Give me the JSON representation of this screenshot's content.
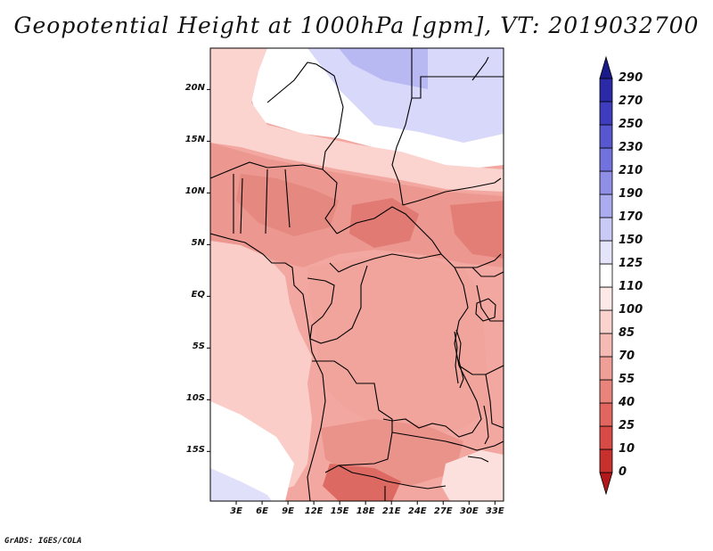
{
  "title": "Geopotential Height at 1000hPa [gpm], VT: 2019032700",
  "credit": "GrADS: IGES/COLA",
  "chart_data": {
    "type": "heatmap",
    "title": "Geopotential Height at 1000hPa [gpm], VT: 2019032700",
    "variable": "Geopotential Height",
    "level": "1000hPa",
    "units": "gpm",
    "valid_time": "2019032700",
    "lon_range": [
      0,
      34
    ],
    "lat_range": [
      -19.8,
      24
    ],
    "y_ticks": [
      "20N",
      "15N",
      "10N",
      "5N",
      "EQ",
      "5S",
      "10S",
      "15S"
    ],
    "y_tick_values": [
      20,
      15,
      10,
      5,
      0,
      -5,
      -10,
      -15
    ],
    "x_ticks": [
      "3E",
      "6E",
      "9E",
      "12E",
      "15E",
      "18E",
      "21E",
      "24E",
      "27E",
      "30E",
      "33E"
    ],
    "x_tick_values": [
      3,
      6,
      9,
      12,
      15,
      18,
      21,
      24,
      27,
      30,
      33
    ],
    "colorbar_levels": [
      "0",
      "10",
      "25",
      "40",
      "55",
      "70",
      "85",
      "100",
      "110",
      "125",
      "150",
      "170",
      "190",
      "210",
      "230",
      "250",
      "270",
      "290"
    ],
    "colorbar_colors": [
      "#b2181b",
      "#c8302e",
      "#d84a46",
      "#e2665f",
      "#e8847c",
      "#ef9f98",
      "#f5bab3",
      "#fad3cf",
      "#fde9e7",
      "#ffffff",
      "#e4e4fb",
      "#cacaf6",
      "#ababf0",
      "#8f8fe8",
      "#7272de",
      "#5757cf",
      "#3d3dbd",
      "#2a2aa6",
      "#1a1a88"
    ],
    "colorbar_extend": "both"
  }
}
